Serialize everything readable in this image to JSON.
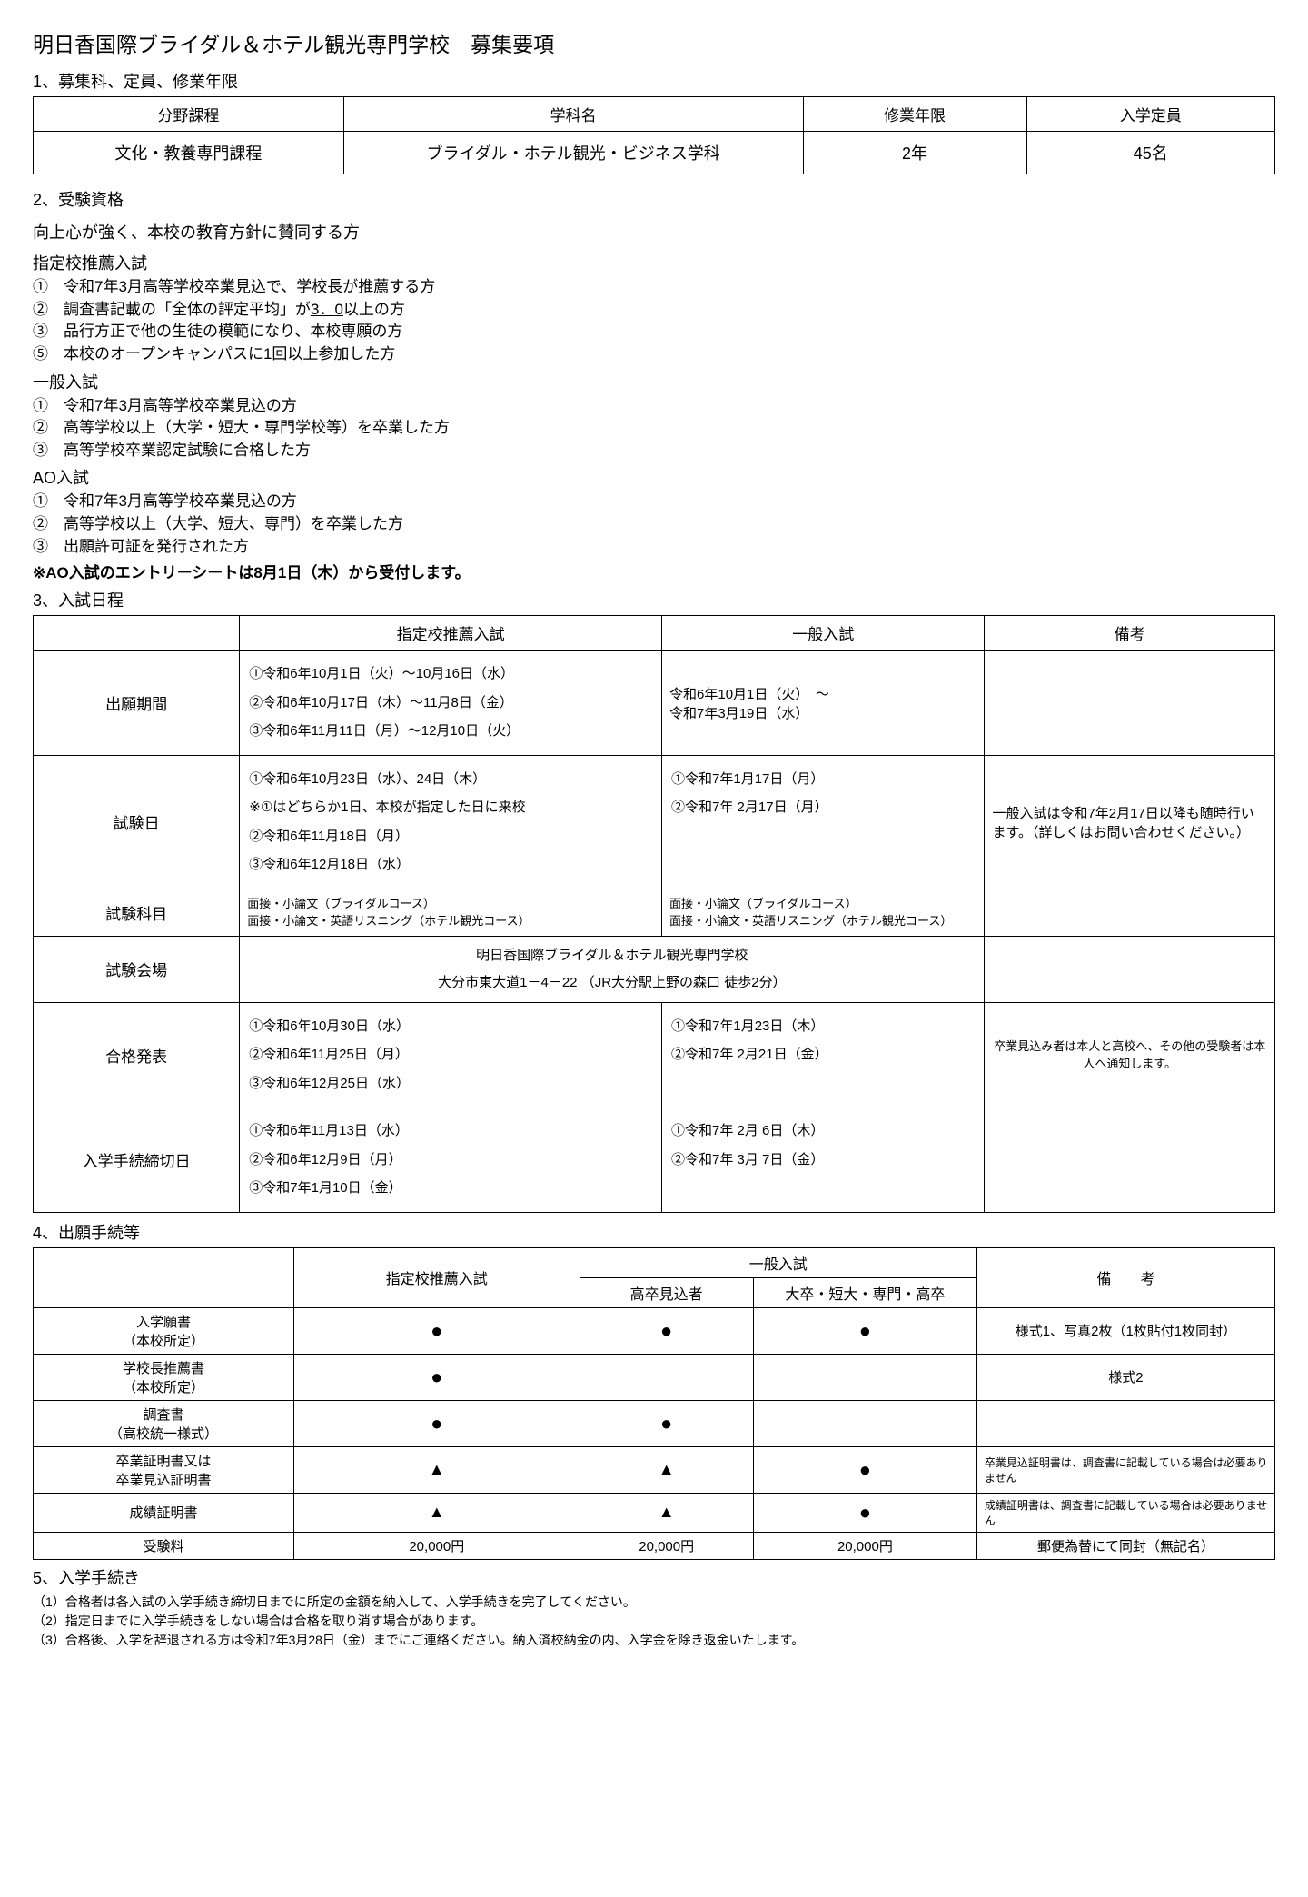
{
  "title": "明日香国際ブライダル＆ホテル観光専門学校　募集要項",
  "sec1": {
    "heading": "1、募集科、定員、修業年限",
    "headers": [
      "分野課程",
      "学科名",
      "修業年限",
      "入学定員"
    ],
    "row": [
      "文化・教養専門課程",
      "ブライダル・ホテル観光・ビジネス学科",
      "2年",
      "45名"
    ]
  },
  "sec2": {
    "heading": "2、受験資格",
    "intro": "向上心が強く、本校の教育方針に賛同する方",
    "blocks": [
      {
        "title": "指定校推薦入試",
        "items": [
          "①　令和7年3月高等学校卒業見込で、学校長が推薦する方",
          "②　調査書記載の「全体の評定平均」が<u>3．0</u>以上の方",
          "③　品行方正で他の生徒の模範になり、本校専願の方",
          "⑤　本校のオープンキャンパスに1回以上参加した方"
        ]
      },
      {
        "title": "一般入試",
        "items": [
          "①　令和7年3月高等学校卒業見込の方",
          "②　高等学校以上（大学・短大・専門学校等）を卒業した方",
          "③　高等学校卒業認定試験に合格した方"
        ]
      },
      {
        "title": "AO入試",
        "items": [
          "①　令和7年3月高等学校卒業見込の方",
          "②　高等学校以上（大学、短大、専門）を卒業した方",
          "③　出願許可証を発行された方"
        ],
        "note": "※AO入試のエントリーシートは8月1日（木）から受付します。"
      }
    ]
  },
  "sec3": {
    "heading": "3、入試日程",
    "headers": [
      "",
      "指定校推薦入試",
      "一般入試",
      "備考"
    ],
    "rows": {
      "r1": {
        "label": "出願期間",
        "c1": "①令和6年10月1日（火）～10月16日（水）\n②令和6年10月17日（木）～11月8日（金）\n③令和6年11月11日（月）～12月10日（火）",
        "c2": "令和6年10月1日（火）　～\n令和7年3月19日（水）",
        "c3": ""
      },
      "r2": {
        "label": "試験日",
        "c1": "①令和6年10月23日（水）、24日（木）\n※①はどちらか1日、本校が指定した日に来校\n②令和6年11月18日（月）\n③令和6年12月18日（水）",
        "c2": "①令和7年1月17日（月）\n②令和7年 2月17日（月）",
        "c3": "一般入試は令和7年2月17日以降も随時行います。（詳しくはお問い合わせください。）"
      },
      "r3": {
        "label": "試験科目",
        "c1": "面接・小論文（ブライダルコース）\n面接・小論文・英語リスニング（ホテル観光コース）",
        "c2": "面接・小論文（ブライダルコース）\n面接・小論文・英語リスニング（ホテル観光コース）",
        "c3": ""
      },
      "r4": {
        "label": "試験会場",
        "center": "明日香国際ブライダル＆ホテル観光専門学校\n大分市東大道1－4－22 （JR大分駅上野の森口 徒歩2分）",
        "c3": ""
      },
      "r5": {
        "label": "合格発表",
        "c1": "①令和6年10月30日（水）\n②令和6年11月25日（月）\n③令和6年12月25日（水）",
        "c2": "①令和7年1月23日（木）\n②令和7年 2月21日（金）",
        "c3": "卒業見込み者は本人と高校へ、その他の受験者は本人へ通知します。"
      },
      "r6": {
        "label": "入学手続締切日",
        "c1": "①令和6年11月13日（水）\n②令和6年12月9日（月）\n③令和7年1月10日（金）",
        "c2": "①令和7年 2月 6日（木）\n②令和7年 3月 7日（金）",
        "c3": ""
      }
    }
  },
  "sec4": {
    "heading": "4、出願手続等",
    "top_headers": {
      "a": "指定校推薦入試",
      "b": "一般入試",
      "c": "備　　考"
    },
    "sub_headers": {
      "b1": "高卒見込者",
      "b2": "大卒・短大・専門・高卒"
    },
    "rows": [
      {
        "label": "入学願書\n（本校所定）",
        "a": "●",
        "b1": "●",
        "b2": "●",
        "note": "様式1、写真2枚（1枚貼付1枚同封）"
      },
      {
        "label": "学校長推薦書\n（本校所定）",
        "a": "●",
        "b1": "",
        "b2": "",
        "note": "様式2"
      },
      {
        "label": "調査書\n（高校統一様式）",
        "a": "●",
        "b1": "●",
        "b2": "",
        "note": ""
      },
      {
        "label": "卒業証明書又は\n卒業見込証明書",
        "a": "▲",
        "b1": "▲",
        "b2": "●",
        "note": "卒業見込証明書は、調査書に記載している場合は必要ありません"
      },
      {
        "label": "成績証明書",
        "a": "▲",
        "b1": "▲",
        "b2": "●",
        "note": "成績証明書は、調査書に記載している場合は必要ありません"
      },
      {
        "label": "受験料",
        "a": "20,000円",
        "b1": "20,000円",
        "b2": "20,000円",
        "note": "郵便為替にて同封（無記名）"
      }
    ]
  },
  "sec5": {
    "heading": "5、入学手続き",
    "notes": [
      "（1）合格者は各入試の入学手続き締切日までに所定の金額を納入して、入学手続きを完了してください。",
      "（2）指定日までに入学手続きをしない場合は合格を取り消す場合があります。",
      "（3）合格後、入学を辞退される方は令和7年3月28日（金）までにご連絡ください。納入済校納金の内、入学金を除き返金いたします。"
    ]
  }
}
